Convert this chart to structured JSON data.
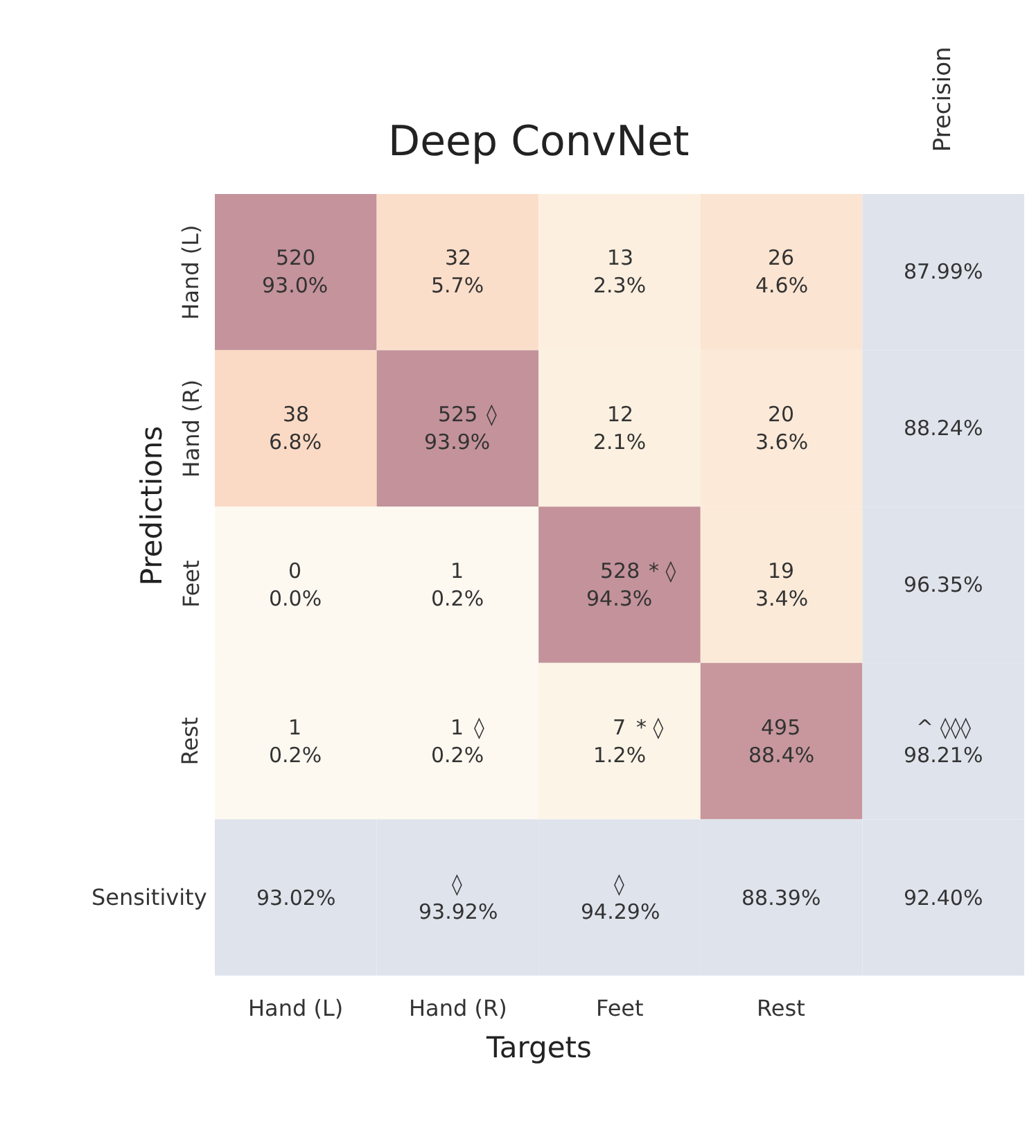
{
  "chart_data": {
    "type": "heatmap",
    "title": "Deep ConvNet",
    "xlabel": "Targets",
    "ylabel": "Predictions",
    "categories": [
      "Hand (L)",
      "Hand (R)",
      "Feet",
      "Rest",
      null
    ],
    "y_categories": [
      "Hand (L)",
      "Hand (R)",
      "Feet",
      "Rest",
      "Sensitivity"
    ],
    "cells": [
      [
        520,
        32,
        13,
        26,
        87.99
      ],
      [
        38,
        525,
        12,
        20,
        88.24
      ],
      [
        0,
        1,
        528,
        19,
        96.35
      ],
      [
        1,
        1,
        7,
        495,
        98.21
      ],
      [
        93.02,
        93.92,
        94.29,
        88.39,
        92.4
      ]
    ],
    "cell_labels": [
      [
        "520",
        "32",
        "13",
        "26",
        "87.99%"
      ],
      [
        "38",
        "525",
        "12",
        "20",
        "88.24%"
      ],
      [
        "0",
        "1",
        "528",
        "19",
        "96.35%"
      ],
      [
        "1",
        "1",
        "7",
        "495",
        "^ ◊◊◊\n98.21%"
      ],
      [
        "93.02%",
        "◊\n93.92%",
        "◊\n94.29%",
        "88.39%",
        "92.40%"
      ]
    ],
    "annotations": [
      "Precision",
      "93.0%",
      "5.7%",
      "2.3%",
      "4.6%",
      "6.8%",
      "◊\n93.9%",
      "2.1%",
      "3.6%",
      "0.0%",
      "0.2%",
      "* ◊\n94.3%",
      "3.4%",
      "0.2%",
      "◊\n0.2%",
      "* ◊\n1.2%",
      "88.4%"
    ],
    "color": "#dfe3ec"
  }
}
